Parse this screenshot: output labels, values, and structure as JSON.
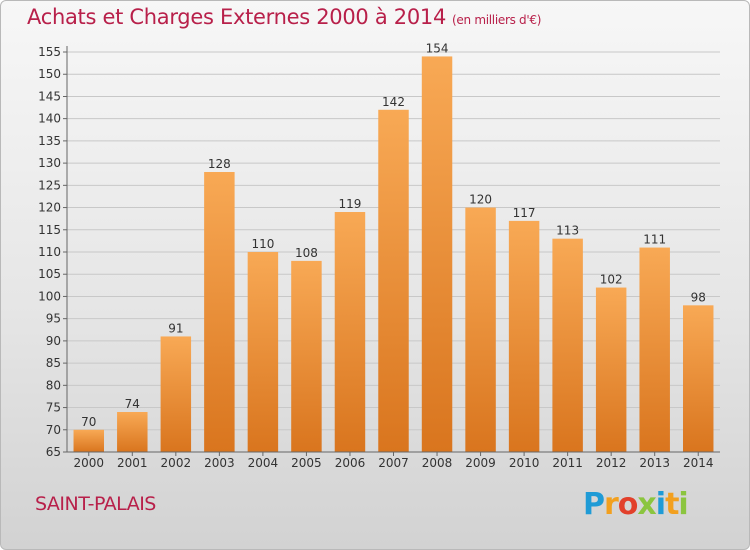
{
  "header": {
    "title": "Achats et Charges Externes 2000 à 2014",
    "unit": "(en milliers d'€)"
  },
  "footer": {
    "commune": "SAINT-PALAIS",
    "brand": {
      "letters": [
        "P",
        "r",
        "o",
        "x",
        "i",
        "t",
        "i"
      ],
      "colors": [
        "#1f9bd6",
        "#f2a01f",
        "#e2402b",
        "#8bc53f",
        "#1f9bd6",
        "#f2a01f",
        "#8bc53f"
      ]
    }
  },
  "colors": {
    "bar_light": "#f8a955",
    "bar_dark": "#d9751e",
    "axis": "#666666",
    "grid": "#c8c8c8",
    "title": "#b8204a"
  },
  "chart_data": {
    "type": "bar",
    "title": "Achats et Charges Externes 2000 à 2014",
    "subtitle": "(en milliers d'€)",
    "categories": [
      "2000",
      "2001",
      "2002",
      "2003",
      "2004",
      "2005",
      "2006",
      "2007",
      "2008",
      "2009",
      "2010",
      "2011",
      "2012",
      "2013",
      "2014"
    ],
    "values": [
      70,
      74,
      91,
      128,
      110,
      108,
      119,
      142,
      154,
      120,
      117,
      113,
      102,
      111,
      98
    ],
    "ylim": [
      65,
      155
    ],
    "yticks": [
      65,
      70,
      75,
      80,
      85,
      90,
      95,
      100,
      105,
      110,
      115,
      120,
      125,
      130,
      135,
      140,
      145,
      150,
      155
    ],
    "grid": true,
    "legend": "none",
    "data_labels": true
  }
}
